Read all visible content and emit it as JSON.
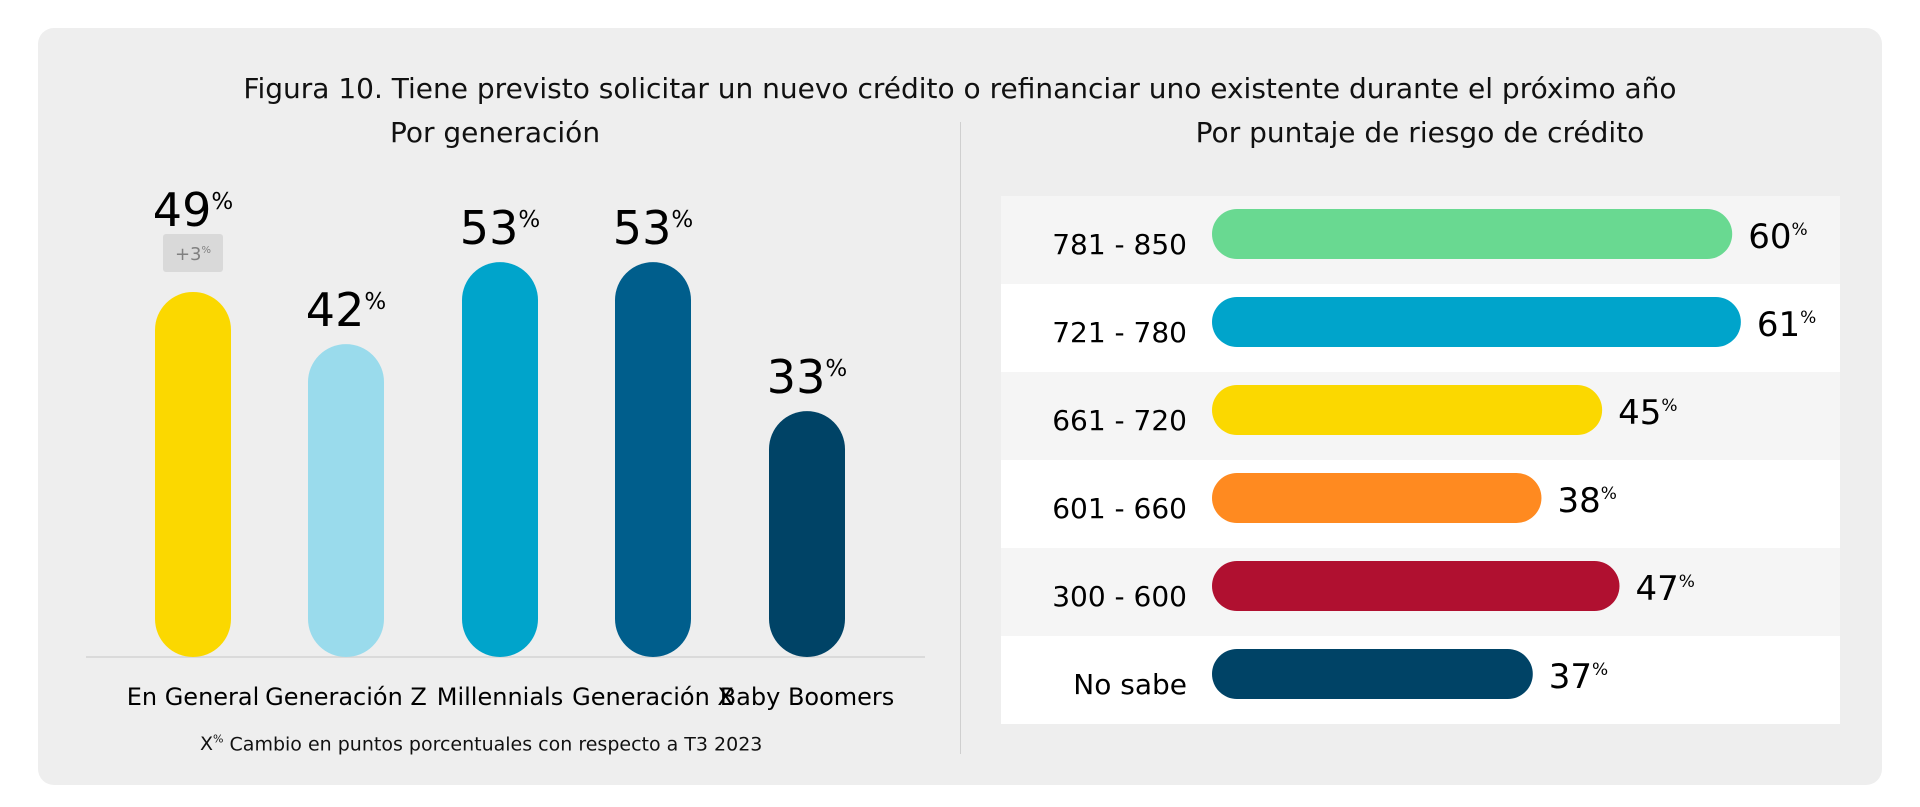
{
  "title": "Figura 10. Tiene previsto solicitar un nuevo crédito o refinanciar uno existente durante el próximo año",
  "percent_sign": "%",
  "note": {
    "marker": "X",
    "marker_sup": "%",
    "text": "Cambio en puntos porcentuales con respecto a T3 2023"
  },
  "colors": {
    "panel_bg": "#eeeeee",
    "row_stripe": "#f5f5f5",
    "row_white": "#ffffff",
    "badge_bg": "#d9d9d9",
    "badge_text": "#808080"
  },
  "chart_data": [
    {
      "type": "bar",
      "orientation": "vertical",
      "title": "Por generación",
      "categories": [
        "En General",
        "Generación Z",
        "Millennials",
        "Generación X",
        "Baby Boomers"
      ],
      "values": [
        49,
        42,
        53,
        53,
        33
      ],
      "value_labels": [
        "49",
        "42",
        "53",
        "53",
        "33"
      ],
      "colors": [
        "#fbd800",
        "#9adbec",
        "#00a4cb",
        "#005e8c",
        "#004366"
      ],
      "annotations": [
        {
          "category": "En General",
          "text": "+3",
          "sup": "%"
        }
      ],
      "unit": "%"
    },
    {
      "type": "bar",
      "orientation": "horizontal",
      "title": "Por puntaje de riesgo de crédito",
      "categories": [
        "781 - 850",
        "721 - 780",
        "661 - 720",
        "601 - 660",
        "300 - 600",
        "No sabe"
      ],
      "values": [
        60,
        61,
        45,
        38,
        47,
        37
      ],
      "value_labels": [
        "60",
        "61",
        "45",
        "38",
        "47",
        "37"
      ],
      "colors": [
        "#69d991",
        "#00a4cb",
        "#fbd800",
        "#ff8a20",
        "#b01030",
        "#004366"
      ],
      "unit": "%"
    }
  ]
}
